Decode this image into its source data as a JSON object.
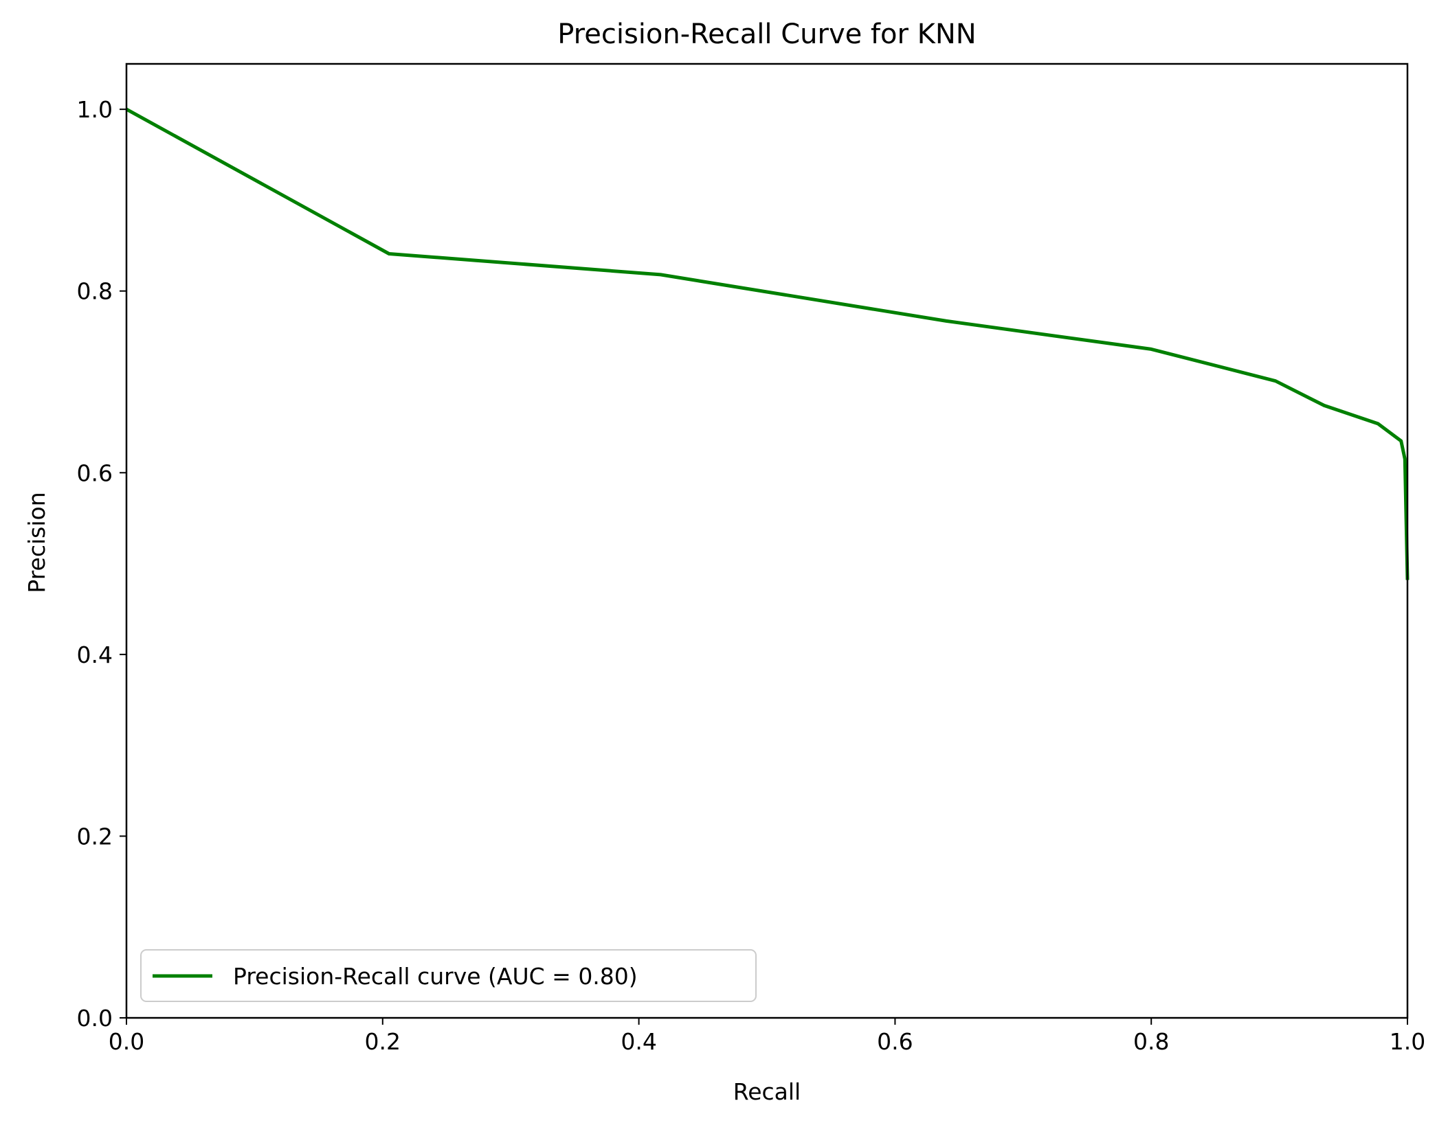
{
  "chart_data": {
    "type": "line",
    "title": "Precision-Recall Curve for KNN",
    "xlabel": "Recall",
    "ylabel": "Precision",
    "xlim": [
      0.0,
      1.0
    ],
    "ylim": [
      0.0,
      1.05
    ],
    "xticks": [
      "0.0",
      "0.2",
      "0.4",
      "0.6",
      "0.8",
      "1.0"
    ],
    "yticks": [
      "0.0",
      "0.2",
      "0.4",
      "0.6",
      "0.8",
      "1.0"
    ],
    "grid": false,
    "legend_position": "lower-left",
    "series": [
      {
        "name": "Precision-Recall curve (AUC = 0.80)",
        "color": "#008000",
        "x": [
          0.0,
          0.205,
          0.417,
          0.64,
          0.8,
          0.897,
          0.935,
          0.977,
          0.995,
          0.998,
          1.0
        ],
        "y": [
          1.0,
          0.841,
          0.818,
          0.767,
          0.736,
          0.701,
          0.674,
          0.654,
          0.635,
          0.615,
          0.482
        ]
      }
    ]
  }
}
